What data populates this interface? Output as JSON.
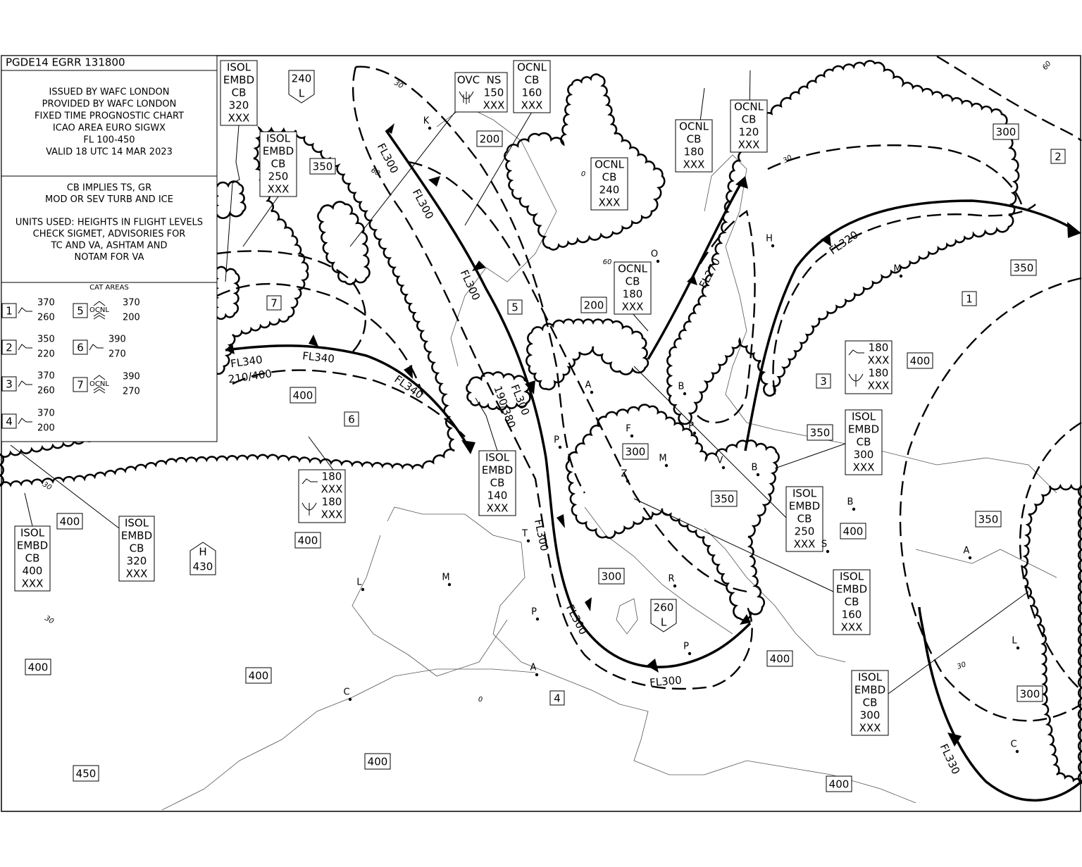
{
  "header": {
    "chart_id": "PGDE14 EGRR 131800",
    "issue_lines": [
      "ISSUED BY WAFC LONDON",
      "PROVIDED BY WAFC LONDON",
      "FIXED TIME PROGNOSTIC CHART",
      "ICAO AREA EURO SIGWX",
      "FL 100-450",
      "VALID 18 UTC 14 MAR 2023"
    ],
    "notes": [
      "CB IMPLIES TS, GR",
      "MOD OR SEV TURB AND ICE"
    ],
    "units_notes": [
      "UNITS USED: HEIGHTS IN FLIGHT LEVELS",
      "CHECK SIGMET, ADVISORIES FOR",
      "TC AND VA, ASHTAM AND",
      "NOTAM FOR VA"
    ]
  },
  "cat_legend": {
    "title": "CAT AREAS",
    "items": [
      {
        "id": "1",
        "top": "370",
        "base": "260"
      },
      {
        "id": "2",
        "top": "350",
        "base": "220"
      },
      {
        "id": "3",
        "top": "370",
        "base": "260"
      },
      {
        "id": "4",
        "top": "370",
        "base": "200"
      },
      {
        "id": "5",
        "qualifier": "OCNL",
        "top": "370",
        "base": "200"
      },
      {
        "id": "6",
        "top": "390",
        "base": "270"
      },
      {
        "id": "7",
        "qualifier": "OCNL",
        "top": "390",
        "base": "270"
      }
    ]
  },
  "cb_areas": [
    {
      "lines": [
        "ISOL",
        "EMBD",
        "CB",
        "320",
        "XXX"
      ]
    },
    {
      "lines": [
        "ISOL",
        "EMBD",
        "CB",
        "250",
        "XXX"
      ]
    },
    {
      "lines": [
        "OVC",
        "NS",
        "150",
        "XXX"
      ]
    },
    {
      "lines": [
        "OCNL",
        "CB",
        "160",
        "XXX"
      ]
    },
    {
      "lines": [
        "OCNL",
        "CB",
        "120",
        "XXX"
      ]
    },
    {
      "lines": [
        "OCNL",
        "CB",
        "180",
        "XXX"
      ]
    },
    {
      "lines": [
        "OCNL",
        "CB",
        "240",
        "XXX"
      ]
    },
    {
      "lines": [
        "OCNL",
        "CB",
        "180",
        "XXX"
      ]
    },
    {
      "lines": [
        "ISOL",
        "EMBD",
        "CB",
        "140",
        "XXX"
      ]
    },
    {
      "lines": [
        "ISOL",
        "EMBD",
        "CB",
        "300",
        "XXX"
      ]
    },
    {
      "lines": [
        "ISOL",
        "EMBD",
        "CB",
        "250",
        "XXX"
      ]
    },
    {
      "lines": [
        "ISOL",
        "EMBD",
        "CB",
        "160",
        "XXX"
      ]
    },
    {
      "lines": [
        "ISOL",
        "EMBD",
        "CB",
        "300",
        "XXX"
      ]
    },
    {
      "lines": [
        "ISOL",
        "EMBD",
        "CB",
        "400",
        "XXX"
      ]
    },
    {
      "lines": [
        "ISOL",
        "EMBD",
        "CB",
        "320",
        "XXX"
      ]
    }
  ],
  "turbulence_icing_boxes": [
    {
      "lines": [
        "180",
        "XXX",
        "180",
        "XXX"
      ]
    },
    {
      "lines": [
        "180",
        "XXX",
        "180",
        "XXX"
      ]
    }
  ],
  "tropopause_heights": [
    "350",
    "200",
    "300",
    "350",
    "200",
    "400",
    "300",
    "350",
    "400",
    "350",
    "400",
    "400",
    "400",
    "350",
    "300",
    "400",
    "400",
    "400",
    "300",
    "400",
    "450",
    "400"
  ],
  "pressure_centres": [
    {
      "type": "L",
      "height": "240"
    },
    {
      "type": "H",
      "height": "430"
    },
    {
      "type": "L",
      "height": "260"
    }
  ],
  "cat_area_markers": [
    "1",
    "2",
    "3",
    "4",
    "5",
    "6",
    "7"
  ],
  "jet_labels": [
    "FL300",
    "FL300",
    "FL300",
    "FL300",
    "190/380",
    "FL300",
    "FL300",
    "FL300",
    "FL340",
    "210/400",
    "FL340",
    "FL340",
    "FL270",
    "FL320",
    "FL330"
  ],
  "place_letters": [
    "K",
    "O",
    "H",
    "M",
    "B",
    "P",
    "F",
    "M",
    "Z",
    "A",
    "B",
    "P",
    "V",
    "B",
    "T",
    "L",
    "M",
    "P",
    "A",
    "C",
    "R",
    "P",
    "A",
    "L",
    "C",
    "S"
  ],
  "latitude_labels": [
    "30",
    "60",
    "0",
    "60",
    "30",
    "60",
    "30",
    "30",
    "0",
    "30"
  ]
}
